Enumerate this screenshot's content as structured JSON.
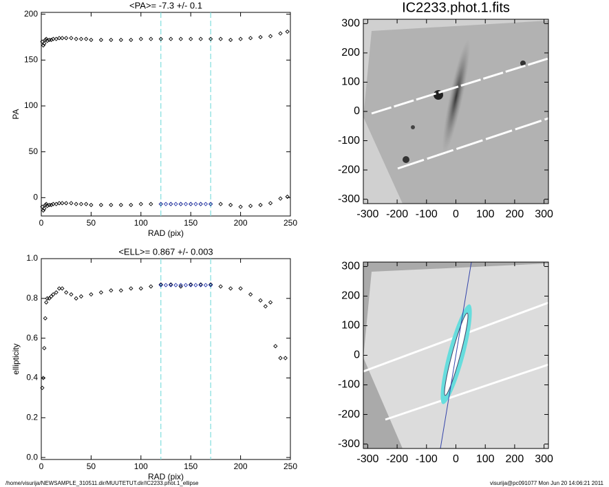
{
  "chart_data": [
    {
      "type": "scatter",
      "title": "<PA>=  -7.3 +/-   0.1",
      "xlabel": "RAD (pix)",
      "ylabel": "PA",
      "xlim": [
        0,
        250
      ],
      "xticks": [
        0,
        50,
        100,
        150,
        200,
        250
      ],
      "ylim": [
        -20,
        202
      ],
      "yticks": [
        0,
        50,
        100,
        150,
        200
      ],
      "vlines": [
        120,
        170
      ],
      "vline_color": "#7fdede",
      "series": [
        {
          "color": "#000000",
          "x": [
            1,
            2,
            3,
            4,
            5,
            6,
            8,
            10,
            12,
            15,
            18,
            21,
            25,
            30,
            35,
            40,
            45,
            50,
            60,
            70,
            80,
            90,
            100,
            110,
            120,
            130,
            140,
            150,
            160,
            170,
            180,
            190,
            200,
            210,
            220,
            230,
            240,
            247
          ],
          "values": [
            170,
            166,
            168,
            172,
            173,
            171,
            172,
            172,
            173,
            173,
            174,
            174,
            174,
            174,
            173,
            173,
            173,
            172,
            172,
            172,
            172,
            172,
            173,
            173,
            173,
            173,
            173,
            173,
            173,
            173,
            173,
            172,
            173,
            174,
            175,
            176,
            179,
            181
          ]
        },
        {
          "color": "#000000",
          "x": [
            1,
            2,
            3,
            4,
            5,
            6,
            8,
            10,
            12,
            15,
            18,
            21,
            25,
            30,
            35,
            40,
            45,
            50,
            60,
            70,
            80,
            90,
            100,
            110,
            120,
            130,
            140,
            150,
            160,
            170,
            180,
            190,
            200,
            210,
            220,
            230,
            240,
            247
          ],
          "values": [
            -10,
            -14,
            -12,
            -8,
            -7,
            -9,
            -8,
            -8,
            -7,
            -7,
            -6,
            -6,
            -6,
            -6,
            -7,
            -7,
            -7,
            -8,
            -8,
            -8,
            -8,
            -8,
            -7,
            -7,
            -7,
            -7,
            -7,
            -7,
            -7,
            -7,
            -7,
            -8,
            -10,
            -9,
            -8,
            -6,
            -1,
            1
          ]
        },
        {
          "color": "#2233aa",
          "x": [
            120,
            125,
            130,
            135,
            140,
            145,
            150,
            155,
            160,
            165,
            170
          ],
          "values": [
            -7,
            -7,
            -7,
            -7,
            -7,
            -7,
            -7,
            -7,
            -7,
            -7,
            -7
          ]
        }
      ]
    },
    {
      "type": "image",
      "title": "IC2233.phot.1.fits",
      "xlim": [
        -315,
        315
      ],
      "xticks": [
        -300,
        -200,
        -100,
        0,
        100,
        200,
        300
      ],
      "ylim": [
        -315,
        315
      ],
      "yticks": [
        -300,
        -200,
        -100,
        0,
        100,
        200,
        300
      ]
    },
    {
      "type": "scatter",
      "title": "<ELL>= 0.867 +/-  0.003",
      "xlabel": "RAD (pix)",
      "ylabel": "ellipticity",
      "xlim": [
        0,
        250
      ],
      "xticks": [
        0,
        50,
        100,
        150,
        200,
        250
      ],
      "ylim": [
        -0.01,
        1.0
      ],
      "yticks": [
        {
          "value": 0,
          "label": "0.0"
        },
        {
          "value": 0.2,
          "label": "0.2"
        },
        {
          "value": 0.4,
          "label": "0.4"
        },
        {
          "value": 0.6,
          "label": "0.6"
        },
        {
          "value": 0.8,
          "label": "0.8"
        },
        {
          "value": 1,
          "label": "1.0"
        }
      ],
      "vlines": [
        120,
        170
      ],
      "vline_color": "#7fdede",
      "series": [
        {
          "color": "#000000",
          "x": [
            1,
            2,
            3,
            4,
            5,
            6,
            8,
            10,
            12,
            15,
            18,
            21,
            25,
            30,
            35,
            40,
            50,
            60,
            70,
            80,
            90,
            100,
            110,
            120,
            130,
            140,
            150,
            160,
            170,
            180,
            190,
            200,
            210,
            220,
            225,
            230,
            235,
            240,
            245
          ],
          "values": [
            0.35,
            0.4,
            0.55,
            0.7,
            0.78,
            0.8,
            0.8,
            0.81,
            0.82,
            0.83,
            0.85,
            0.85,
            0.83,
            0.82,
            0.8,
            0.81,
            0.82,
            0.83,
            0.84,
            0.84,
            0.85,
            0.85,
            0.86,
            0.87,
            0.87,
            0.86,
            0.87,
            0.87,
            0.87,
            0.86,
            0.85,
            0.85,
            0.82,
            0.79,
            0.76,
            0.78,
            0.56,
            0.5,
            0.5
          ]
        },
        {
          "color": "#2233aa",
          "x": [
            120,
            125,
            130,
            135,
            140,
            145,
            150,
            155,
            160,
            165,
            170
          ],
          "values": [
            0.867,
            0.867,
            0.867,
            0.867,
            0.867,
            0.867,
            0.867,
            0.867,
            0.867,
            0.867,
            0.867
          ]
        }
      ]
    },
    {
      "type": "image",
      "xlim": [
        -315,
        315
      ],
      "xticks": [
        -300,
        -200,
        -100,
        0,
        100,
        200,
        300
      ],
      "ylim": [
        -315,
        315
      ],
      "yticks": [
        -300,
        -200,
        -100,
        0,
        100,
        200,
        300
      ]
    }
  ],
  "footer": {
    "left": "/home/visurija/NEWSAMPLE_310511.dir/MUUTETUT.dir/IC2233.phot.1_ellipse",
    "right": "visurija@pc091077  Mon Jun 20 14:06:21 2011"
  }
}
